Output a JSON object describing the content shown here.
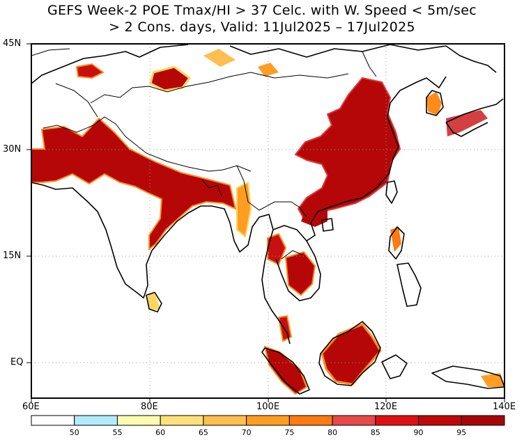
{
  "title": {
    "line1": "GEFS Week-2 POE Tmax/HI > 37 Celc. with W. Speed < 5m/sec",
    "line2": "> 2 Cons. days, Valid: 11Jul2025 – 17Jul2025"
  },
  "axes": {
    "lat_labels": [
      "45N",
      "30N",
      "15N",
      "EQ"
    ],
    "lon_labels": [
      "60E",
      "80E",
      "100E",
      "120E",
      "140E"
    ]
  },
  "legend": {
    "colors": [
      "#ffffff",
      "#b0ecf7",
      "#fffbb0",
      "#ffe07a",
      "#ffbe50",
      "#ff9d20",
      "#ff7a10",
      "#e84848",
      "#e01010",
      "#c00808",
      "#a80606"
    ],
    "labels": [
      "50",
      "55",
      "60",
      "65",
      "70",
      "75",
      "80",
      "85",
      "90",
      "95"
    ]
  },
  "colors": {
    "high_prob": "#b50707",
    "mid_prob": "#ff8c1a",
    "low_prob": "#ffd560"
  }
}
